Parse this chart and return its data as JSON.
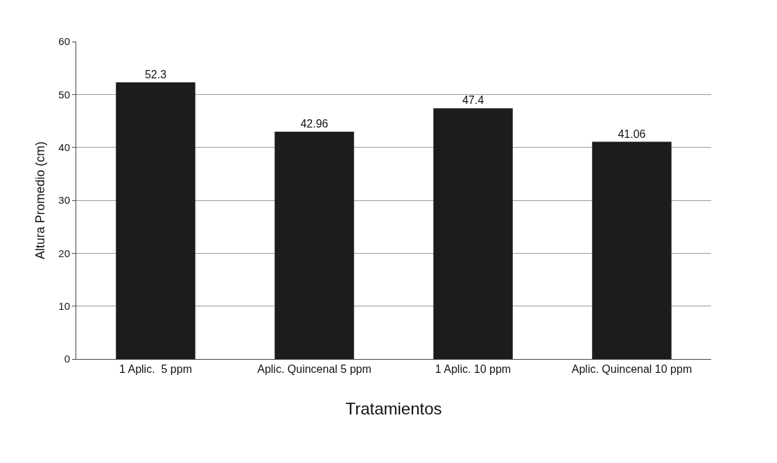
{
  "chart_data": {
    "type": "bar",
    "xlabel": "Tratamientos",
    "ylabel": "Altura Promedio (cm)",
    "categories": [
      "1 Aplic.  5 ppm",
      "Aplic. Quincenal 5 ppm",
      "1 Aplic. 10 ppm",
      "Aplic. Quincenal 10 ppm"
    ],
    "values": [
      52.3,
      42.96,
      47.4,
      41.06
    ],
    "color": "#1c1c1c",
    "ylim": [
      0,
      60
    ],
    "yticks": [
      0,
      10,
      20,
      30,
      40,
      50,
      60
    ],
    "grid": "y",
    "data_labels": true
  }
}
